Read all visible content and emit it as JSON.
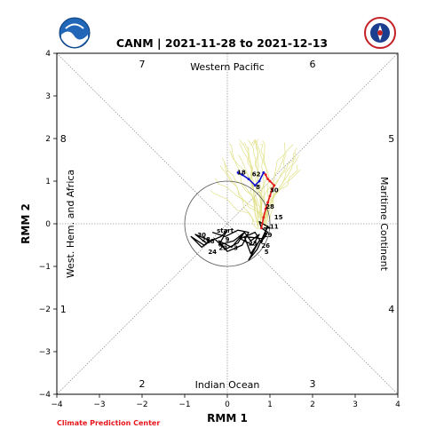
{
  "title": "CANM | 2021-11-28 to 2021-12-13",
  "footer": "Climate Prediction Center",
  "logos": {
    "left": "NOAA",
    "right": "NATIONAL WEATHER SERVICE"
  },
  "colors": {
    "obs": "#000000",
    "fc_red": "#e41a1c",
    "fc_blue": "#1010d0",
    "ensemble": "#e1e18a",
    "footer": "#e8151b"
  },
  "chart_data": {
    "type": "line",
    "xlabel": "RMM 1",
    "ylabel": "RMM 2",
    "xlim": [
      -4,
      4
    ],
    "ylim": [
      -4,
      4
    ],
    "ticks": [
      -4,
      -3,
      -2,
      -1,
      0,
      1,
      2,
      3,
      4
    ],
    "regions": {
      "top": "Western Pacific",
      "bottom": "Indian Ocean",
      "left": "West. Hem. and Africa",
      "right": "Maritime Continent"
    },
    "phases": [
      {
        "label": "7",
        "x": -2.0,
        "y": 3.75
      },
      {
        "label": "6",
        "x": 2.0,
        "y": 3.75
      },
      {
        "label": "8",
        "x": -3.85,
        "y": 2.0
      },
      {
        "label": "5",
        "x": 3.85,
        "y": 2.0
      },
      {
        "label": "1",
        "x": -3.85,
        "y": -2.0
      },
      {
        "label": "4",
        "x": 3.85,
        "y": -2.0
      },
      {
        "label": "2",
        "x": -2.0,
        "y": -3.75
      },
      {
        "label": "3",
        "x": 2.0,
        "y": -3.75
      }
    ],
    "unit_circle_radius": 1,
    "observed": {
      "x": [
        -0.35,
        -0.05,
        0.25,
        0.5,
        0.35,
        0.0,
        -0.2,
        0.1,
        0.4,
        0.25,
        -0.05,
        -0.3,
        -0.55,
        -0.85,
        -0.6,
        -0.4,
        -0.75,
        -0.5,
        -0.15,
        0.0,
        -0.2,
        0.15,
        0.4,
        0.55,
        0.75,
        0.6,
        0.3,
        0.65,
        0.8,
        0.95,
        0.7,
        0.5,
        0.75,
        0.55,
        0.4,
        0.85,
        0.95,
        0.8,
        0.75,
        1.0,
        0.85
      ],
      "y": [
        -0.2,
        -0.3,
        -0.15,
        -0.2,
        -0.5,
        -0.65,
        -0.4,
        -0.55,
        -0.2,
        -0.45,
        -0.6,
        -0.35,
        -0.5,
        -0.3,
        -0.55,
        -0.4,
        -0.25,
        -0.45,
        -0.3,
        -0.15,
        -0.5,
        -0.4,
        -0.2,
        -0.4,
        -0.25,
        -0.5,
        -0.35,
        -0.2,
        -0.45,
        -0.05,
        -0.6,
        -0.85,
        -0.4,
        -0.7,
        -0.3,
        -0.35,
        -0.2,
        -0.1,
        0.05,
        -0.1,
        -0.1
      ]
    },
    "observed_labels": [
      {
        "label": "start",
        "x": -0.05,
        "y": -0.15
      },
      {
        "label": "30",
        "x": -0.6,
        "y": -0.25
      },
      {
        "label": "28",
        "x": -0.5,
        "y": -0.35
      },
      {
        "label": "18",
        "x": -0.4,
        "y": -0.4
      },
      {
        "label": "9",
        "x": 0.0,
        "y": -0.35
      },
      {
        "label": "22",
        "x": -0.1,
        "y": -0.55
      },
      {
        "label": "3",
        "x": 0.2,
        "y": -0.55
      },
      {
        "label": "24",
        "x": -0.35,
        "y": -0.65
      },
      {
        "label": "23",
        "x": 0.6,
        "y": -0.45
      },
      {
        "label": "19",
        "x": 0.95,
        "y": -0.25
      },
      {
        "label": "26",
        "x": 0.9,
        "y": -0.5
      },
      {
        "label": "5",
        "x": 0.92,
        "y": -0.65
      },
      {
        "label": "11",
        "x": 1.1,
        "y": -0.05
      }
    ],
    "forecast_red": {
      "x": [
        0.8,
        0.85,
        0.9,
        0.95,
        1.0,
        1.05,
        1.1,
        1.0,
        0.95,
        0.9,
        0.85
      ],
      "y": [
        -0.1,
        0.15,
        0.35,
        0.5,
        0.65,
        0.8,
        0.9,
        1.0,
        1.05,
        1.15,
        1.2
      ]
    },
    "forecast_blue": {
      "x": [
        0.85,
        0.75,
        0.65,
        0.5,
        0.35,
        0.25
      ],
      "y": [
        1.2,
        1.0,
        0.9,
        1.05,
        1.15,
        1.2
      ]
    },
    "forecast_labels": [
      {
        "label": "30",
        "x": 1.1,
        "y": 0.8
      },
      {
        "label": "28",
        "x": 1.0,
        "y": 0.42
      },
      {
        "label": "15",
        "x": 1.2,
        "y": 0.17
      },
      {
        "label": "62",
        "x": 0.68,
        "y": 1.18
      },
      {
        "label": "8",
        "x": 0.72,
        "y": 0.87
      },
      {
        "label": "18",
        "x": 0.33,
        "y": 1.22
      }
    ]
  }
}
